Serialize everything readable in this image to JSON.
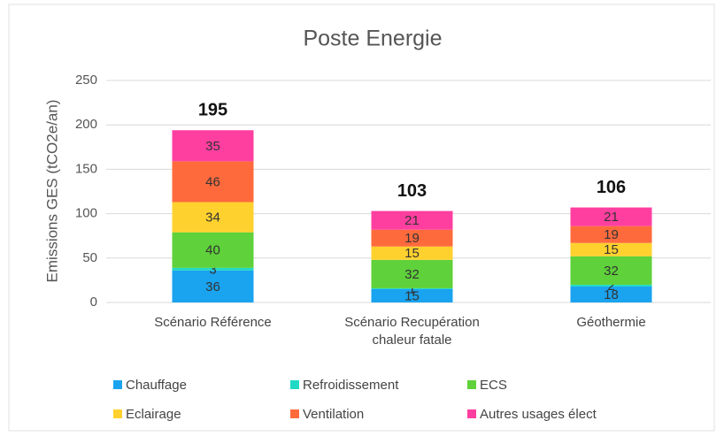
{
  "chart_data": {
    "type": "stacked_bar",
    "title": "Poste Energie",
    "y_label": "Emissions GES (tCO2e/an)",
    "categories": [
      "Scénario Référence",
      "Scénario Recupération chaleur fatale",
      "Géothermie"
    ],
    "series": [
      {
        "name": "Chauffage",
        "color": "#1aa3ef",
        "values": [
          36,
          15,
          18
        ]
      },
      {
        "name": "Refroidissement",
        "color": "#1fd9c5",
        "values": [
          3,
          1,
          2
        ]
      },
      {
        "name": "ECS",
        "color": "#5fd13a",
        "values": [
          40,
          32,
          32
        ]
      },
      {
        "name": "Eclairage",
        "color": "#ffd12e",
        "values": [
          34,
          15,
          15
        ]
      },
      {
        "name": "Ventilation",
        "color": "#ff6a3d",
        "values": [
          46,
          19,
          19
        ]
      },
      {
        "name": "Autres usages élect",
        "color": "#ff3fa0",
        "values": [
          35,
          21,
          21
        ]
      }
    ],
    "totals": [
      195,
      103,
      106
    ],
    "ylim": [
      0,
      250
    ],
    "yticks": [
      0,
      50,
      100,
      150,
      200,
      250
    ],
    "grid": true
  }
}
